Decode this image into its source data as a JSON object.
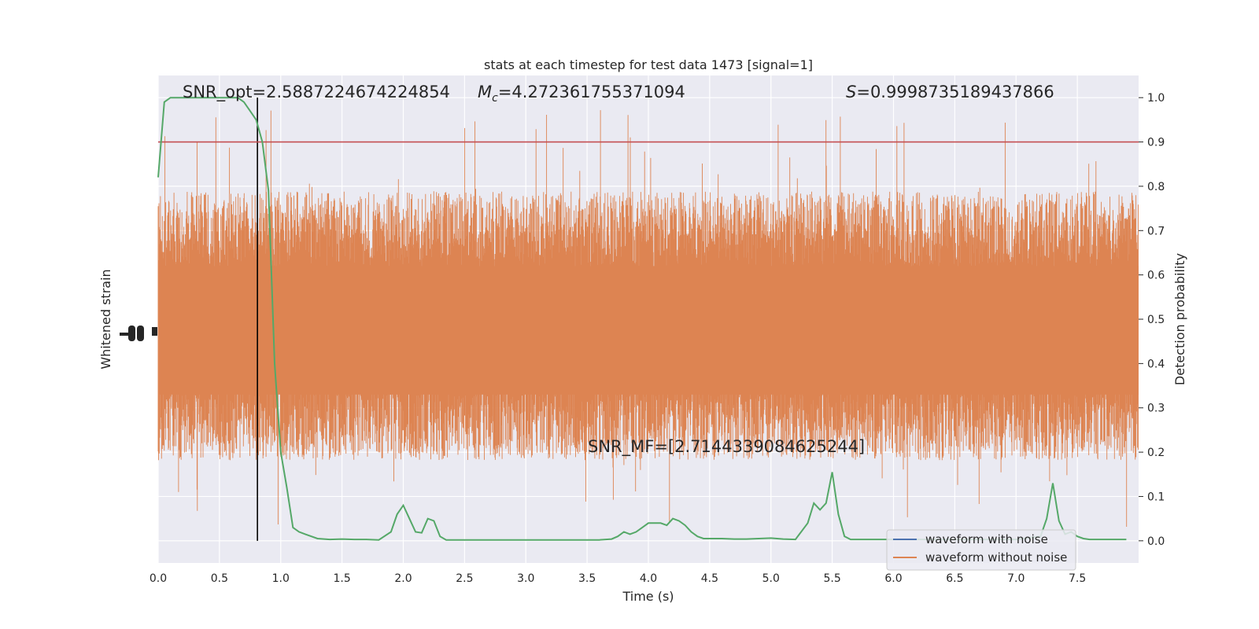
{
  "chart_data": {
    "type": "line",
    "title": "stats at each timestep for test data 1473 [signal=1]",
    "xlabel": "Time (s)",
    "ylabel_left": "Whitened strain",
    "ylabel_right": "Detection probability",
    "xlim": [
      0,
      8
    ],
    "ylim_right": [
      -0.05,
      1.05
    ],
    "x_ticks": [
      "0.0",
      "0.5",
      "1.0",
      "1.5",
      "2.0",
      "2.5",
      "3.0",
      "3.5",
      "4.0",
      "4.5",
      "5.0",
      "5.5",
      "6.0",
      "6.5",
      "7.0",
      "7.5"
    ],
    "y_ticks_right": [
      "0.0",
      "0.1",
      "0.2",
      "0.3",
      "0.4",
      "0.5",
      "0.6",
      "0.7",
      "0.8",
      "0.9",
      "1.0"
    ],
    "grid": true,
    "background": "#eaeaf2",
    "annotations": {
      "snr_opt": "SNR_opt=2.5887224674224854",
      "mc_symbol": "M",
      "mc_sub": "c",
      "mc_value": "=4.272361755371094",
      "s_symbol": "S",
      "s_value": "=0.9998735189437866",
      "snr_mf": "SNR_MF=[2.7144339084625244]"
    },
    "threshold": {
      "value": 0.9,
      "color": "#c44e52"
    },
    "vline_time": 0.81,
    "series": [
      {
        "name": "waveform with noise",
        "color": "#4c72b0"
      },
      {
        "name": "waveform without noise",
        "color": "#dd8452"
      }
    ],
    "noise_band": {
      "center": 0.47,
      "typical_upper": 0.72,
      "typical_lower": 0.25,
      "max_upper": 1.0,
      "min_lower": 0.0
    },
    "detection_probability": {
      "color": "#55a868",
      "t": [
        0.0,
        0.05,
        0.1,
        0.15,
        0.2,
        0.3,
        0.4,
        0.5,
        0.6,
        0.65,
        0.7,
        0.75,
        0.8,
        0.85,
        0.9,
        0.95,
        1.0,
        1.05,
        1.1,
        1.15,
        1.2,
        1.3,
        1.4,
        1.5,
        1.6,
        1.7,
        1.8,
        1.9,
        1.95,
        2.0,
        2.05,
        2.1,
        2.15,
        2.2,
        2.25,
        2.3,
        2.35,
        2.4,
        2.5,
        2.6,
        2.8,
        3.0,
        3.2,
        3.4,
        3.6,
        3.7,
        3.75,
        3.8,
        3.85,
        3.9,
        3.95,
        4.0,
        4.1,
        4.15,
        4.2,
        4.25,
        4.3,
        4.35,
        4.4,
        4.45,
        4.5,
        4.6,
        4.7,
        4.8,
        4.9,
        5.0,
        5.1,
        5.2,
        5.3,
        5.35,
        5.4,
        5.45,
        5.5,
        5.55,
        5.6,
        5.65,
        5.7,
        5.75,
        5.8,
        5.9,
        6.0,
        6.5,
        7.0,
        7.2,
        7.25,
        7.3,
        7.35,
        7.4,
        7.45,
        7.5,
        7.55,
        7.6,
        7.65,
        7.7,
        7.8,
        7.9
      ],
      "p": [
        0.82,
        0.99,
        1.0,
        1.0,
        1.0,
        1.0,
        1.0,
        1.0,
        1.0,
        1.0,
        0.99,
        0.97,
        0.95,
        0.9,
        0.79,
        0.4,
        0.2,
        0.12,
        0.03,
        0.02,
        0.015,
        0.005,
        0.003,
        0.004,
        0.003,
        0.003,
        0.002,
        0.02,
        0.06,
        0.08,
        0.05,
        0.02,
        0.018,
        0.05,
        0.045,
        0.01,
        0.002,
        0.002,
        0.002,
        0.002,
        0.002,
        0.002,
        0.002,
        0.002,
        0.002,
        0.004,
        0.01,
        0.02,
        0.015,
        0.02,
        0.03,
        0.04,
        0.04,
        0.035,
        0.05,
        0.045,
        0.035,
        0.02,
        0.01,
        0.005,
        0.005,
        0.005,
        0.004,
        0.004,
        0.005,
        0.006,
        0.004,
        0.003,
        0.04,
        0.085,
        0.07,
        0.085,
        0.155,
        0.06,
        0.01,
        0.003,
        0.003,
        0.003,
        0.003,
        0.003,
        0.003,
        0.003,
        0.003,
        0.01,
        0.05,
        0.13,
        0.045,
        0.015,
        0.02,
        0.01,
        0.005,
        0.003,
        0.003,
        0.003,
        0.003,
        0.003
      ]
    }
  }
}
